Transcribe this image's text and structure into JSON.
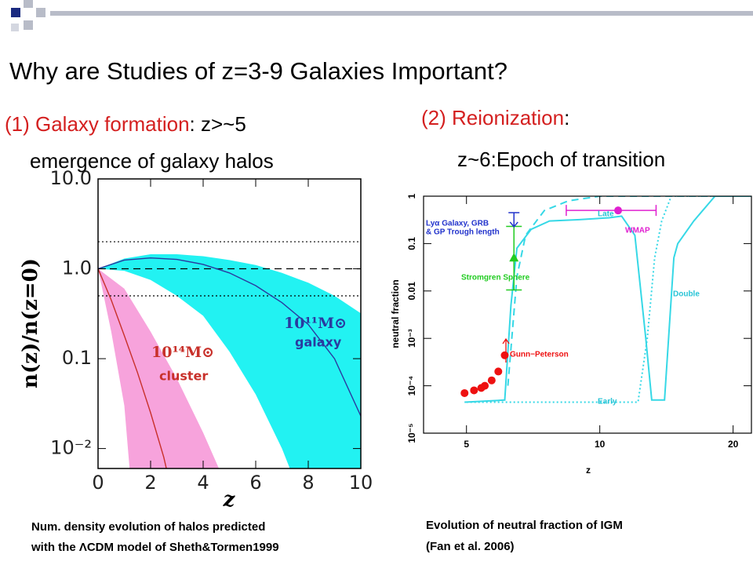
{
  "slide": {
    "title": "Why are Studies of z=3-9 Galaxies Important?",
    "left_heading": {
      "label_1": "(1) Galaxy formation",
      "label_2": ": z>~5",
      "line_2": "emergence of galaxy halos"
    },
    "right_heading": {
      "label_1": "(2) Reionization",
      "label_2": ":",
      "line_2": "z~6:Epoch of transition"
    },
    "left_caption": [
      "Num. density evolution of halos predicted",
      "with the ΛCDM model of Sheth&Tormen1999"
    ],
    "right_caption": [
      "Evolution of neutral fraction of IGM",
      "(Fan et al. 2006)"
    ]
  },
  "chart_data": [
    {
      "type": "line",
      "xlabel": "z",
      "ylabel": "n(z)/n(z=0)",
      "xlim": [
        0,
        10
      ],
      "ylim": [
        0.006,
        10
      ],
      "ylog": true,
      "xticks": [
        0,
        2,
        4,
        6,
        8,
        10
      ],
      "yticks": [
        {
          "value": 10,
          "label": "10.0"
        },
        {
          "value": 1,
          "label": "1.0"
        },
        0.1,
        {
          "value": 0.01,
          "label": "10⁻²"
        }
      ],
      "reference_lines": [
        {
          "value": 2,
          "style": "dotted"
        },
        {
          "value": 1,
          "style": "dashed"
        },
        {
          "value": 0.5,
          "style": "dotted"
        }
      ],
      "bands": [
        {
          "color": "#22f2f2",
          "upper": {
            "x": [
              0,
              1,
              2,
              3,
              4,
              5,
              6,
              7,
              8,
              9,
              10
            ],
            "values": [
              1,
              1.3,
              1.45,
              1.45,
              1.38,
              1.25,
              1.1,
              0.9,
              0.7,
              0.5,
              0.32
            ]
          },
          "lower": {
            "x": [
              0,
              1,
              2,
              3,
              4,
              5,
              6,
              7,
              7.3,
              10
            ],
            "values": [
              1,
              0.95,
              0.75,
              0.5,
              0.3,
              0.12,
              0.04,
              0.01,
              0.006,
              0.006
            ]
          }
        },
        {
          "color": "#f7a3dc",
          "upper": {
            "x": [
              0,
              1,
              2,
              3,
              4,
              4.6
            ],
            "values": [
              1,
              0.6,
              0.2,
              0.06,
              0.015,
              0.006
            ]
          },
          "lower": {
            "x": [
              0,
              0.5,
              1,
              1.2
            ],
            "values": [
              1,
              0.2,
              0.03,
              0.006
            ]
          }
        }
      ],
      "series": [
        {
          "color": "#2a3aa0",
          "x": [
            0,
            1,
            2,
            3,
            4,
            5,
            6,
            7,
            8,
            9,
            10
          ],
          "values": [
            1,
            1.25,
            1.32,
            1.27,
            1.12,
            0.9,
            0.65,
            0.42,
            0.24,
            0.1,
            0.023
          ]
        },
        {
          "color": "#c8302a",
          "x": [
            0,
            0.5,
            1,
            1.5,
            2,
            2.5,
            2.6
          ],
          "values": [
            1,
            0.45,
            0.18,
            0.07,
            0.025,
            0.008,
            0.006
          ]
        }
      ],
      "annotations": [
        {
          "text": "10¹¹M⊙",
          "color": "#2a3aa0"
        },
        {
          "text": "galaxy",
          "color": "#2a3aa0"
        },
        {
          "text": "10¹⁴M⊙",
          "color": "#c8302a"
        },
        {
          "text": "cluster",
          "color": "#c8302a"
        }
      ]
    },
    {
      "type": "line",
      "xlabel": "z",
      "ylabel": "neutral fraction",
      "xlim": [
        4,
        22
      ],
      "ylim": [
        1e-05,
        1
      ],
      "xlog": true,
      "ylog": true,
      "xticks": [
        5,
        10,
        20
      ],
      "yticks": [
        1,
        0.1,
        0.01,
        {
          "value": 0.001,
          "label": "10⁻³"
        },
        {
          "value": 0.0001,
          "label": "10⁻⁴"
        },
        {
          "value": 1e-05,
          "label": "10⁻⁵"
        }
      ],
      "series": [
        {
          "name": "Double",
          "color": "#36d8e6",
          "style": "solid",
          "x": [
            4.95,
            6.1,
            6.3,
            6.5,
            7.0,
            7.7,
            9.0,
            10.5,
            11.2,
            12.0,
            12.7,
            13.1,
            14.0,
            14.7,
            15.0,
            16.3,
            18.2,
            22
          ],
          "values": [
            4.5e-05,
            5e-05,
            0.005,
            0.08,
            0.2,
            0.3,
            0.32,
            0.35,
            0.38,
            0.15,
            0.001,
            5e-05,
            5e-05,
            0.05,
            0.1,
            0.3,
            1,
            1
          ]
        },
        {
          "name": "Late",
          "color": "#36d8e6",
          "style": "dashed",
          "x": [
            6.2,
            6.5,
            6.8,
            7.5,
            8.5,
            10,
            22
          ],
          "values": [
            0.0001,
            0.02,
            0.15,
            0.5,
            0.8,
            1,
            1
          ]
        },
        {
          "name": "Early",
          "color": "#36d8e6",
          "style": "dotted",
          "x": [
            5,
            12.2,
            12.8,
            13.3,
            13.8,
            14.5,
            22
          ],
          "values": [
            4.5e-05,
            4.5e-05,
            0.001,
            0.05,
            0.3,
            1,
            1
          ]
        },
        {
          "name": "Gunn−Peterson",
          "color": "#ee1111",
          "style": "markers",
          "x": [
            4.95,
            5.2,
            5.4,
            5.5,
            5.7,
            5.9,
            6.1
          ],
          "values": [
            7e-05,
            8e-05,
            9e-05,
            0.0001,
            0.00013,
            0.0002,
            0.00044
          ]
        },
        {
          "name": "WMAP",
          "color": "#e020d0",
          "style": "markers",
          "x": [
            11
          ],
          "values": [
            0.5
          ],
          "x_range": [
            8.4,
            13.4
          ]
        },
        {
          "name": "Stromgren Sphere",
          "color": "#22cc22",
          "style": "markers",
          "x": [
            6.4
          ],
          "values": [
            0.047
          ],
          "y_range": [
            0.0105,
            0.23
          ]
        },
        {
          "name": [
            "Lyα Galaxy, GRB",
            "& GP Trough length"
          ],
          "color": "#2233cc",
          "style": "upper_limit",
          "x": [
            6.4
          ],
          "values": [
            0.45
          ]
        }
      ]
    }
  ]
}
